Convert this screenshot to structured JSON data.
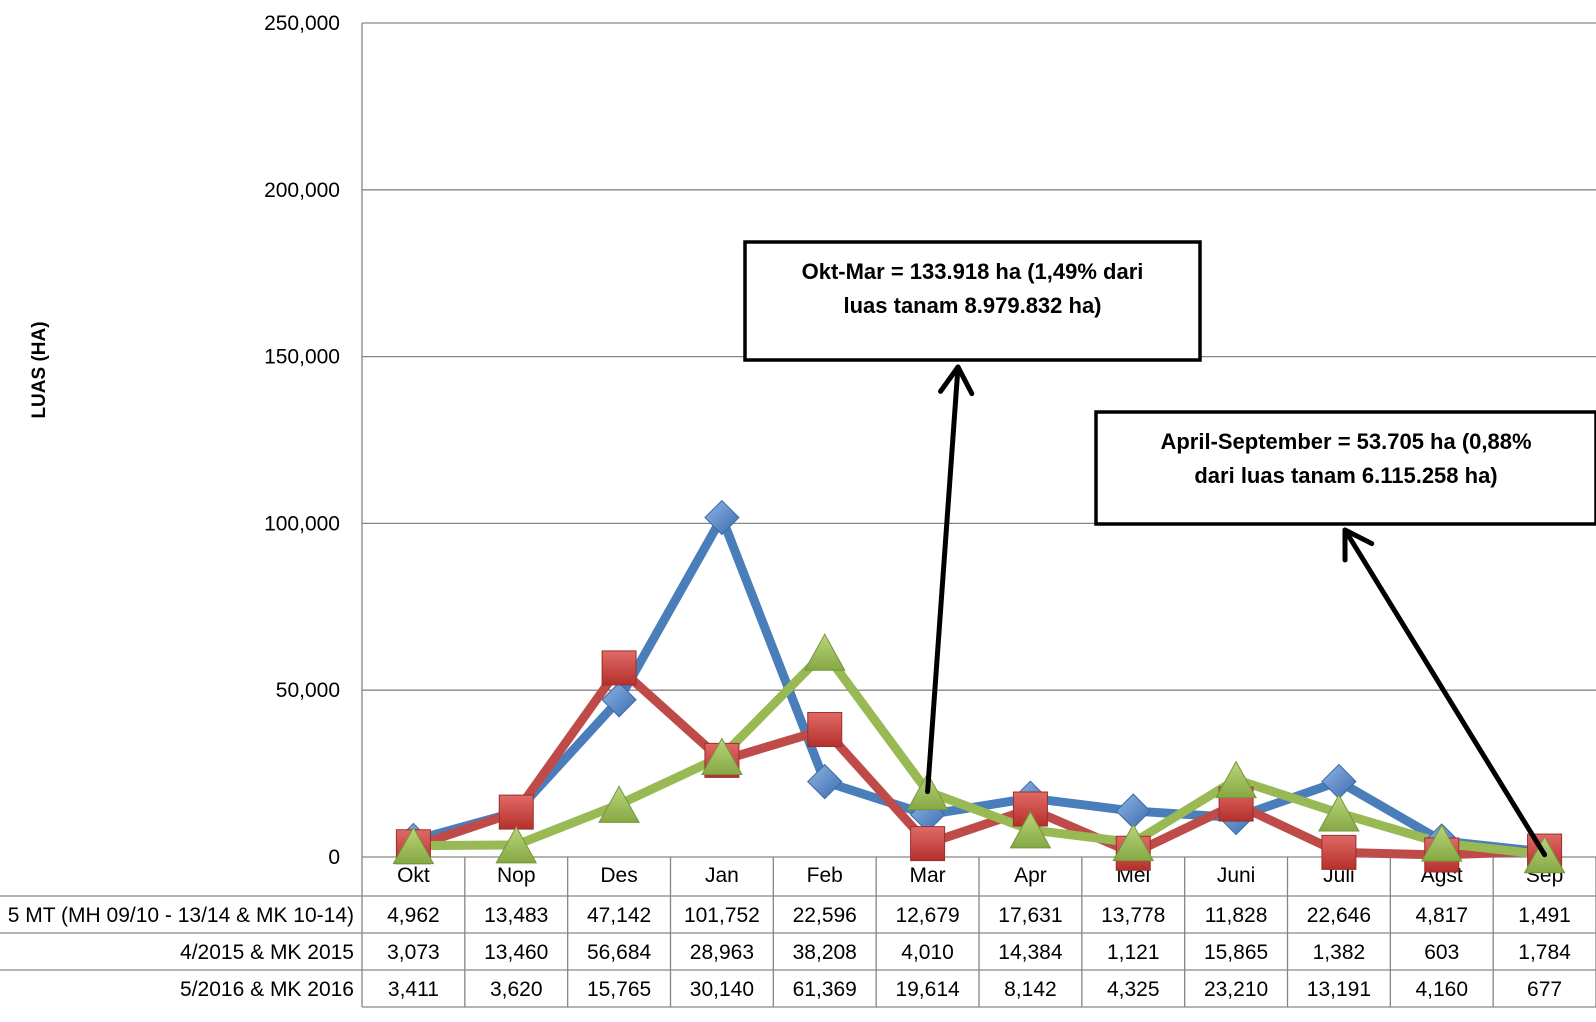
{
  "chart_data": {
    "type": "line",
    "ylabel": "LUAS (HA)",
    "ylim": [
      0,
      250000
    ],
    "yticks": [
      "0",
      "50,000",
      "100,000",
      "150,000",
      "200,000",
      "250,000"
    ],
    "categories": [
      "Okt",
      "Nop",
      "Des",
      "Jan",
      "Feb",
      "Mar",
      "Apr",
      "Mei",
      "Juni",
      "Juli",
      "Agst",
      "Sep"
    ],
    "grid": true,
    "series": [
      {
        "name": "5 MT (MH 09/10 - 13/14 & MK 10-14)",
        "color": "#4a7ebb",
        "marker": "diamond",
        "values": [
          4962,
          13483,
          47142,
          101752,
          22596,
          12679,
          17631,
          13778,
          11828,
          22646,
          4817,
          1491
        ],
        "labels": [
          "4,962",
          "13,483",
          "47,142",
          "101,752",
          "22,596",
          "12,679",
          "17,631",
          "13,778",
          "11,828",
          "22,646",
          "4,817",
          "1,491"
        ]
      },
      {
        "name": "4/2015 & MK 2015",
        "color": "#be4b48",
        "marker": "square",
        "values": [
          3073,
          13460,
          56684,
          28963,
          38208,
          4010,
          14384,
          1121,
          15865,
          1382,
          603,
          1784
        ],
        "labels": [
          "3,073",
          "13,460",
          "56,684",
          "28,963",
          "38,208",
          "4,010",
          "14,384",
          "1,121",
          "15,865",
          "1,382",
          "603",
          "1,784"
        ]
      },
      {
        "name": "5/2016 & MK 2016",
        "color": "#98b954",
        "marker": "triangle",
        "values": [
          3411,
          3620,
          15765,
          30140,
          61369,
          19614,
          8142,
          4325,
          23210,
          13191,
          4160,
          677
        ],
        "labels": [
          "3,411",
          "3,620",
          "15,765",
          "30,140",
          "61,369",
          "19,614",
          "8,142",
          "4,325",
          "23,210",
          "13,191",
          "4,160",
          "677"
        ]
      }
    ],
    "annotations": [
      {
        "lines": [
          "Okt-Mar  = 133.918 ha (1,49%  dari",
          "luas tanam 8.979.832 ha)"
        ],
        "points_to": {
          "category": "Mar",
          "value": 19614
        }
      },
      {
        "lines": [
          "April-September = 53.705 ha (0,88%",
          "dari luas tanam 6.115.258 ha)"
        ],
        "points_to": {
          "category": "Sep",
          "value": 677
        }
      }
    ]
  }
}
